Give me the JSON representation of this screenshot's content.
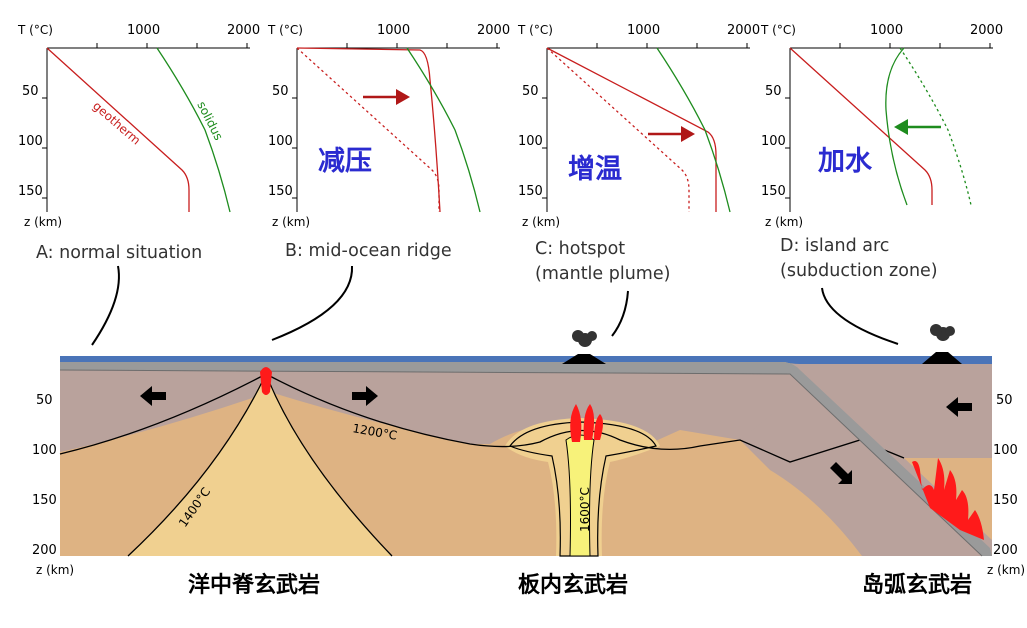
{
  "axes_labels": {
    "temperature": "T (°C)",
    "depth": "z (km)"
  },
  "temperature_ticks": [
    "1000",
    "2000"
  ],
  "depth_ticks": [
    "50",
    "100",
    "150"
  ],
  "curve_labels": {
    "geotherm": "geotherm",
    "solidus": "solidus"
  },
  "panels": [
    {
      "id": "A",
      "caption_line1": "A: normal situation",
      "caption_line2": "",
      "process": ""
    },
    {
      "id": "B",
      "caption_line1": "B: mid-ocean ridge",
      "caption_line2": "",
      "process": "减压"
    },
    {
      "id": "C",
      "caption_line1": "C: hotspot",
      "caption_line2": "(mantle plume)",
      "process": "增温"
    },
    {
      "id": "D",
      "caption_line1": "D: island arc",
      "caption_line2": "(subduction zone)",
      "process": "加水"
    }
  ],
  "cross_section": {
    "depth_ticks": [
      "50",
      "100",
      "150",
      "200"
    ],
    "depth_axis_label": "z (km)",
    "isotherms": [
      "1200°C",
      "1400°C",
      "1600°C"
    ]
  },
  "bottom_labels": [
    "洋中脊玄武岩",
    "板内玄武岩",
    "岛弧玄武岩"
  ],
  "colors": {
    "geotherm": "#c81e1e",
    "solidus": "#1e8c1e",
    "process_text": "#2b2bd0",
    "ocean": "#4a74b8",
    "crust": "#9a9a9a",
    "lithosphere": "#b9a29c",
    "asthenosphere": "#deb383",
    "hot_mantle": "#f0d090",
    "plume_core": "#f7f27a",
    "magma": "#ff1a1a"
  }
}
